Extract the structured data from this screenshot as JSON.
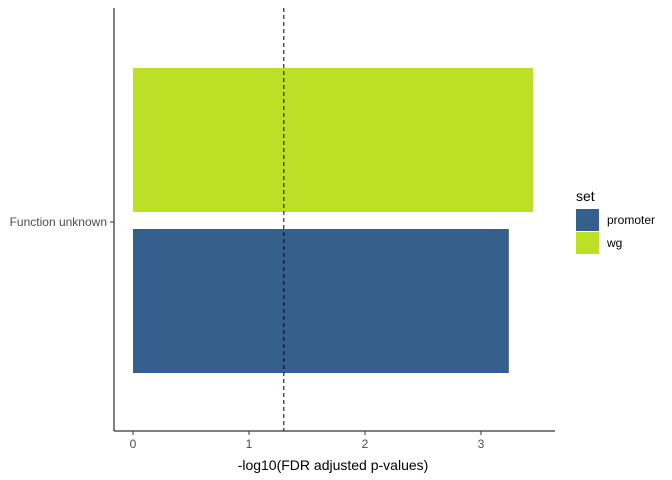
{
  "chart_data": {
    "type": "bar",
    "orientation": "horizontal",
    "categories": [
      "Function unknown"
    ],
    "series": [
      {
        "name": "wg",
        "values": [
          3.45
        ],
        "color": "#bddf26"
      },
      {
        "name": "promoter",
        "values": [
          3.24
        ],
        "color": "#355f8d"
      }
    ],
    "xlabel": "-log10(FDR adjusted p-values)",
    "ylabel": "",
    "xlim": [
      -0.16,
      3.6
    ],
    "xticks": [
      "0",
      "1",
      "2",
      "3"
    ],
    "threshold_line": {
      "x": 1.3,
      "style": "dashed"
    },
    "grid": false,
    "legend": {
      "title": "set",
      "placement": "right",
      "entries": [
        {
          "label": "promoter",
          "color": "#355f8d"
        },
        {
          "label": "wg",
          "color": "#bddf26"
        }
      ]
    }
  }
}
